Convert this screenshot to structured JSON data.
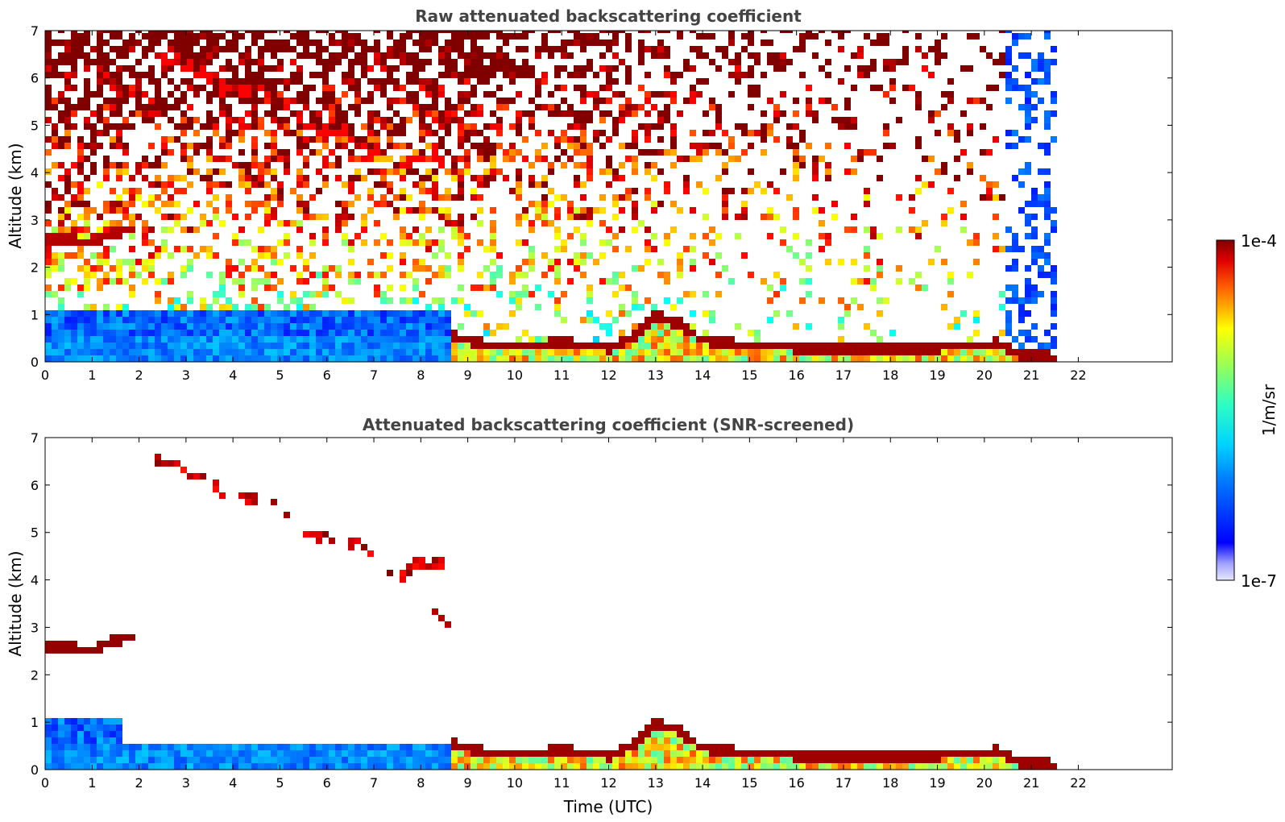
{
  "chart_data": [
    {
      "type": "heatmap",
      "title": "Raw attenuated backscattering coefficient",
      "xlabel": "",
      "ylabel": "Altitude (km)",
      "xlim": [
        0,
        24
      ],
      "ylim": [
        0,
        7
      ],
      "xticks": [
        "0",
        "1",
        "2",
        "3",
        "4",
        "5",
        "6",
        "7",
        "8",
        "9",
        "10",
        "11",
        "12",
        "13",
        "14",
        "15",
        "16",
        "17",
        "18",
        "19",
        "20",
        "21",
        "22"
      ],
      "yticks": [
        "0",
        "1",
        "2",
        "3",
        "4",
        "5",
        "6",
        "7"
      ],
      "data_end_time": 21.5,
      "gap_time": 1.5,
      "features": [
        {
          "kind": "boundary-layer-top",
          "points": [
            [
              8.6,
              0.6
            ],
            [
              9.0,
              0.45
            ],
            [
              9.5,
              0.35
            ],
            [
              10.0,
              0.3
            ],
            [
              10.5,
              0.35
            ],
            [
              11.0,
              0.4
            ],
            [
              11.5,
              0.35
            ],
            [
              12.0,
              0.3
            ],
            [
              12.5,
              0.5
            ],
            [
              13.0,
              1.0
            ],
            [
              13.5,
              0.8
            ],
            [
              14.0,
              0.45
            ],
            [
              15.0,
              0.35
            ],
            [
              16.0,
              0.3
            ],
            [
              17.0,
              0.25
            ],
            [
              18.0,
              0.25
            ],
            [
              19.0,
              0.3
            ],
            [
              20.0,
              0.35
            ],
            [
              20.3,
              0.4
            ],
            [
              20.8,
              0.15
            ],
            [
              21.5,
              0.1
            ]
          ]
        },
        {
          "kind": "cloud-layer",
          "points": [
            [
              0.0,
              2.6
            ],
            [
              0.5,
              2.55
            ],
            [
              1.0,
              2.5
            ],
            [
              1.5,
              2.75
            ],
            [
              1.9,
              2.8
            ]
          ]
        },
        {
          "kind": "cloud-layer",
          "points": [
            [
              2.4,
              6.5
            ],
            [
              3.0,
              6.3
            ],
            [
              3.5,
              6.0
            ],
            [
              4.0,
              5.8
            ],
            [
              5.0,
              5.6
            ],
            [
              5.5,
              5.0
            ],
            [
              6.5,
              4.8
            ],
            [
              7.0,
              4.5
            ],
            [
              7.5,
              4.0
            ],
            [
              8.0,
              4.4
            ],
            [
              8.5,
              4.3
            ]
          ]
        },
        {
          "kind": "cloud-layer",
          "points": [
            [
              8.3,
              3.3
            ],
            [
              8.7,
              2.9
            ]
          ]
        }
      ]
    },
    {
      "type": "heatmap",
      "title": "Attenuated backscattering coefficient (SNR-screened)",
      "xlabel": "Time (UTC)",
      "ylabel": "Altitude (km)",
      "xlim": [
        0,
        24
      ],
      "ylim": [
        0,
        7
      ],
      "xticks": [
        "0",
        "1",
        "2",
        "3",
        "4",
        "5",
        "6",
        "7",
        "8",
        "9",
        "10",
        "11",
        "12",
        "13",
        "14",
        "15",
        "16",
        "17",
        "18",
        "19",
        "20",
        "21",
        "22"
      ],
      "yticks": [
        "0",
        "1",
        "2",
        "3",
        "4",
        "5",
        "6",
        "7"
      ],
      "data_end_time": 21.5,
      "gap_time": 1.5
    }
  ],
  "colorbar": {
    "label": "1/m/sr",
    "max_label": "1e-4",
    "min_label": "1e-7",
    "scale": "log",
    "range": [
      1e-07,
      0.0001
    ],
    "colormap": "jet"
  },
  "colors": {
    "title": "#444444",
    "axis": "#000000",
    "background": "#ffffff"
  }
}
